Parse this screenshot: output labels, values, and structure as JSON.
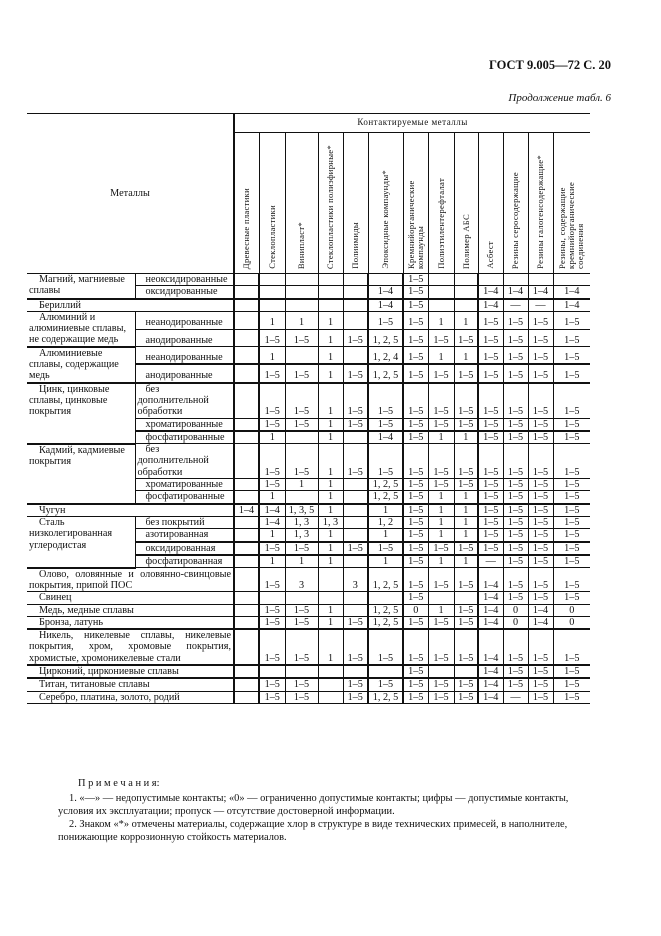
{
  "header": {
    "title": "ГОСТ 9.005—72 С. 20",
    "continuation": "Продолжение табл. 6"
  },
  "table": {
    "metals_header": "Металлы",
    "group_header": "Контактируемые металлы",
    "columns": [
      "Древесные пластики",
      "Стеклопластики",
      "Винипласт*",
      "Стеклопластики полиэфирные*",
      "Полиимиды",
      "Эпоксидные компаунды*",
      "Кремнийорганические компаунды",
      "Полиэтилентерефталат",
      "Полимер АБС",
      "Асбест",
      "Резины серосодержащие",
      "Резины галогенсодержащие*",
      "Резины, содержащие кремнийорганические соединения"
    ],
    "rows": [
      {
        "metal": "Магний, магниевые сплавы",
        "span": 2,
        "sub": "неоксидированные",
        "values": [
          "",
          "",
          "",
          "",
          "",
          "",
          "1–5",
          "",
          "",
          "",
          "",
          "",
          ""
        ]
      },
      {
        "sub": "оксидированные",
        "values": [
          "",
          "",
          "",
          "",
          "",
          "1–4",
          "1–5",
          "",
          "",
          "1–4",
          "1–4",
          "1–4",
          "1–4"
        ],
        "thick": true
      },
      {
        "metal": "Бериллий",
        "span": 1,
        "full": true,
        "values": [
          "",
          "",
          "",
          "",
          "",
          "1–4",
          "1–5",
          "",
          "",
          "1–4",
          "—",
          "—",
          "1–4"
        ]
      },
      {
        "metal": "Алюминий и алюминиевые сплавы, не содержащие медь",
        "span": 2,
        "sub": "неанодированные",
        "values": [
          "",
          "1",
          "1",
          "1",
          "",
          "1–5",
          "1–5",
          "1",
          "1",
          "1–5",
          "1–5",
          "1–5",
          "1–5"
        ]
      },
      {
        "sub": "анодированные",
        "values": [
          "",
          "1–5",
          "1–5",
          "1",
          "1–5",
          "1, 2, 5",
          "1–5",
          "1–5",
          "1–5",
          "1–5",
          "1–5",
          "1–5",
          "1–5"
        ]
      },
      {
        "metal": "Алюминиевые сплавы, содержащие медь",
        "span": 2,
        "sub": "неанодированные",
        "values": [
          "",
          "1",
          "",
          "1",
          "",
          "1, 2, 4",
          "1–5",
          "1",
          "1",
          "1–5",
          "1–5",
          "1–5",
          "1–5"
        ],
        "thick": true
      },
      {
        "sub": "анодированные",
        "values": [
          "",
          "1–5",
          "1–5",
          "1",
          "1–5",
          "1, 2, 5",
          "1–5",
          "1–5",
          "1–5",
          "1–5",
          "1–5",
          "1–5",
          "1–5"
        ],
        "thick": true
      },
      {
        "metal": "Цинк, цинковые сплавы, цинковые покрытия",
        "span": 3,
        "sub": "без дополнительной обработки",
        "values": [
          "",
          "1–5",
          "1–5",
          "1",
          "1–5",
          "1–5",
          "1–5",
          "1–5",
          "1–5",
          "1–5",
          "1–5",
          "1–5",
          "1–5"
        ]
      },
      {
        "sub": "хроматированные",
        "values": [
          "",
          "1–5",
          "1–5",
          "1",
          "1–5",
          "1–5",
          "1–5",
          "1–5",
          "1–5",
          "1–5",
          "1–5",
          "1–5",
          "1–5"
        ],
        "thick": true
      },
      {
        "sub": "фосфатированные",
        "values": [
          "",
          "1",
          "",
          "1",
          "",
          "1–4",
          "1–5",
          "1",
          "1",
          "1–5",
          "1–5",
          "1–5",
          "1–5"
        ]
      },
      {
        "metal": "Кадмий, кадмиевые покрытия",
        "span": 3,
        "sub": "без дополнительной обработки",
        "values": [
          "",
          "1–5",
          "1–5",
          "1",
          "1–5",
          "1–5",
          "1–5",
          "1–5",
          "1–5",
          "1–5",
          "1–5",
          "1–5",
          "1–5"
        ]
      },
      {
        "sub": "хроматированные",
        "values": [
          "",
          "1–5",
          "1",
          "1",
          "",
          "1, 2, 5",
          "1–5",
          "1–5",
          "1–5",
          "1–5",
          "1–5",
          "1–5",
          "1–5"
        ]
      },
      {
        "sub": "фосфатированные",
        "values": [
          "",
          "1",
          "",
          "1",
          "",
          "1, 2, 5",
          "1–5",
          "1",
          "1",
          "1–5",
          "1–5",
          "1–5",
          "1–5"
        ],
        "thick": true
      },
      {
        "metal": "Чугун",
        "span": 1,
        "full": true,
        "values": [
          "1–4",
          "1–4",
          "1, 3, 5",
          "1",
          "",
          "1",
          "1–5",
          "1",
          "1",
          "1–5",
          "1–5",
          "1–5",
          "1–5"
        ]
      },
      {
        "metal": "Сталь низколегированная углеродистая",
        "span": 4,
        "sub": "без покрытий",
        "values": [
          "",
          "1–4",
          "1, 3",
          "1, 3",
          "",
          "1, 2",
          "1–5",
          "1",
          "1",
          "1–5",
          "1–5",
          "1–5",
          "1–5"
        ]
      },
      {
        "sub": "азотированная",
        "values": [
          "",
          "1",
          "1, 3",
          "1",
          "",
          "1",
          "1–5",
          "1",
          "1",
          "1–5",
          "1–5",
          "1–5",
          "1–5"
        ],
        "thick": true
      },
      {
        "sub": "оксидированная",
        "values": [
          "",
          "1–5",
          "1–5",
          "1",
          "1–5",
          "1–5",
          "1–5",
          "1–5",
          "1–5",
          "1–5",
          "1–5",
          "1–5",
          "1–5"
        ],
        "thick": true
      },
      {
        "sub": "фосфатированная",
        "values": [
          "",
          "1",
          "1",
          "1",
          "",
          "1",
          "1–5",
          "1",
          "1",
          "—",
          "1–5",
          "1–5",
          "1–5"
        ]
      },
      {
        "metal": "Олово, оловянные и оловянно-свинцовые покрытия, припой ПОС",
        "span": 1,
        "full": true,
        "values": [
          "",
          "1–5",
          "3",
          "",
          "3",
          "1, 2, 5",
          "1–5",
          "1–5",
          "1–5",
          "1–4",
          "1–5",
          "1–5",
          "1–5"
        ]
      },
      {
        "metal": "Свинец",
        "span": 1,
        "full": true,
        "values": [
          "",
          "",
          "",
          "",
          "",
          "",
          "1–5",
          "",
          "",
          "1–4",
          "1–5",
          "1–5",
          "1–5"
        ]
      },
      {
        "metal": "Медь, медные сплавы",
        "span": 1,
        "full": true,
        "values": [
          "",
          "1–5",
          "1–5",
          "1",
          "",
          "1, 2, 5",
          "0",
          "1",
          "1–5",
          "1–4",
          "0",
          "1–4",
          "0"
        ]
      },
      {
        "metal": "Бронза, латунь",
        "span": 1,
        "full": true,
        "values": [
          "",
          "1–5",
          "1–5",
          "1",
          "1–5",
          "1, 2, 5",
          "1–5",
          "1–5",
          "1–5",
          "1–4",
          "0",
          "1–4",
          "0"
        ],
        "thick": true
      },
      {
        "metal": "Никель, никелевые сплавы, никелевые покрытия, хром, хромовые покрытия, хромистые, хромоникелевые стали",
        "span": 1,
        "full": true,
        "values": [
          "",
          "1–5",
          "1–5",
          "1",
          "1–5",
          "1–5",
          "1–5",
          "1–5",
          "1–5",
          "1–4",
          "1–5",
          "1–5",
          "1–5"
        ],
        "thick": true
      },
      {
        "metal": "Цирконий, циркониевые сплавы",
        "span": 1,
        "full": true,
        "values": [
          "",
          "",
          "",
          "",
          "",
          "",
          "1–5",
          "",
          "",
          "1–4",
          "1–5",
          "1–5",
          "1–5"
        ],
        "thick": true
      },
      {
        "metal": "Титан, титановые сплавы",
        "span": 1,
        "full": true,
        "values": [
          "",
          "1–5",
          "1–5",
          "",
          "1–5",
          "1–5",
          "1–5",
          "1–5",
          "1–5",
          "1–4",
          "1–5",
          "1–5",
          "1–5"
        ]
      },
      {
        "metal": "Серебро, платина, золото, родий",
        "span": 1,
        "full": true,
        "values": [
          "",
          "1–5",
          "1–5",
          "",
          "1–5",
          "1, 2, 5",
          "1–5",
          "1–5",
          "1–5",
          "1–4",
          "—",
          "1–5",
          "1–5"
        ]
      }
    ]
  },
  "notes": {
    "title": "П р и м е ч а н и я:",
    "items": [
      "1. «—» — недопустимые контакты; «0» — ограниченно допустимые контакты; цифры — допустимые контакты, условия их эксплуатации; пропуск — отсутствие достоверной информации.",
      "2. Знаком «*» отмечены материалы, содержащие хлор в структуре в виде технических примесей, в наполнителе, понижающие коррозионную стойкость материалов."
    ]
  }
}
